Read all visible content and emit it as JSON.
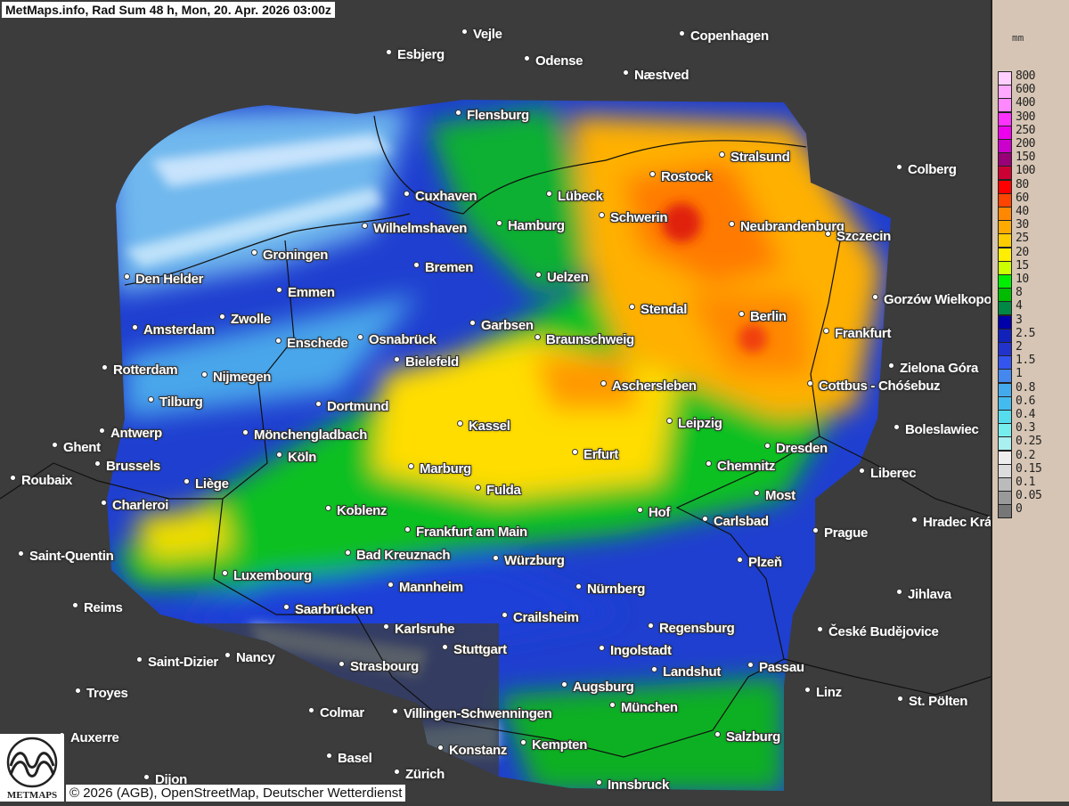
{
  "title": "MetMaps.info, Rad Sum 48 h, Mon, 20. Apr. 2026 03:00z",
  "copyright": "© 2026 (AGB), OpenStreetMap, Deutscher Wetterdienst",
  "logo_text": "METMAPS",
  "legend": {
    "unit": "mm",
    "levels": [
      {
        "label": "800",
        "color": "#ffd0ff"
      },
      {
        "label": "600",
        "color": "#ffaaff"
      },
      {
        "label": "400",
        "color": "#ff88ff"
      },
      {
        "label": "300",
        "color": "#ff33ff"
      },
      {
        "label": "250",
        "color": "#ee00ee"
      },
      {
        "label": "200",
        "color": "#cc00cc"
      },
      {
        "label": "150",
        "color": "#990077"
      },
      {
        "label": "100",
        "color": "#cc0033"
      },
      {
        "label": "80",
        "color": "#ff0000"
      },
      {
        "label": "60",
        "color": "#ff4400"
      },
      {
        "label": "40",
        "color": "#ff8800"
      },
      {
        "label": "30",
        "color": "#ffaa00"
      },
      {
        "label": "25",
        "color": "#ffcc00"
      },
      {
        "label": "20",
        "color": "#ffee00"
      },
      {
        "label": "15",
        "color": "#ccff00"
      },
      {
        "label": "10",
        "color": "#00ee00"
      },
      {
        "label": "8",
        "color": "#00bb00"
      },
      {
        "label": "4",
        "color": "#008844"
      },
      {
        "label": "3",
        "color": "#0000aa"
      },
      {
        "label": "2.5",
        "color": "#1122bb"
      },
      {
        "label": "2",
        "color": "#2233cc"
      },
      {
        "label": "1.5",
        "color": "#3355ee"
      },
      {
        "label": "1",
        "color": "#4488ee"
      },
      {
        "label": "0.8",
        "color": "#44aaee"
      },
      {
        "label": "0.6",
        "color": "#44bbee"
      },
      {
        "label": "0.4",
        "color": "#55ddee"
      },
      {
        "label": "0.3",
        "color": "#77eeee"
      },
      {
        "label": "0.25",
        "color": "#aaf0f0"
      },
      {
        "label": "0.2",
        "color": "#eeeeee"
      },
      {
        "label": "0.15",
        "color": "#dddddd"
      },
      {
        "label": "0.1",
        "color": "#bbbbbb"
      },
      {
        "label": "0.05",
        "color": "#999999"
      },
      {
        "label": "0",
        "color": "#777777"
      }
    ]
  },
  "cities": [
    "Vejle",
    "Copenhagen",
    "Esbjerg",
    "Odense",
    "Næstved",
    "Flensburg",
    "Stralsund",
    "Rostock",
    "Colberg",
    "Cuxhaven",
    "Lübeck",
    "Schwerin",
    "Neubrandenburg",
    "Szczecin",
    "Wilhelmshaven",
    "Hamburg",
    "Groningen",
    "Bremen",
    "Den Helder",
    "Uelzen",
    "Emmen",
    "Gorzów Wielkopolski",
    "Stendal",
    "Berlin",
    "Zwolle",
    "Garbsen",
    "Amsterdam",
    "Frankfurt",
    "Enschede",
    "Osnabrück",
    "Braunschweig",
    "Bielefeld",
    "Zielona Góra",
    "Rotterdam",
    "Nijmegen",
    "Aschersleben",
    "Cottbus - Chóśebuz",
    "Tilburg",
    "Dortmund",
    "Leipzig",
    "Kassel",
    "Antwerp",
    "Mönchengladbach",
    "Boleslawiec",
    "Ghent",
    "Dresden",
    "Erfurt",
    "Köln",
    "Brussels",
    "Marburg",
    "Chemnitz",
    "Liberec",
    "Roubaix",
    "Liège",
    "Fulda",
    "Most",
    "Charleroi",
    "Koblenz",
    "Hof",
    "Carlsbad",
    "Hradec Králové",
    "Prague",
    "Frankfurt am Main",
    "Saint-Quentin",
    "Bad Kreuznach",
    "Würzburg",
    "Plzeň",
    "Luxembourg",
    "Mannheim",
    "Nürnberg",
    "Jihlava",
    "Reims",
    "Saarbrücken",
    "Crailsheim",
    "Karlsruhe",
    "Regensburg",
    "České Budějovice",
    "Stuttgart",
    "Ingolstadt",
    "Saint-Dizier",
    "Nancy",
    "Strasbourg",
    "Landshut",
    "Passau",
    "Augsburg",
    "Linz",
    "Troyes",
    "St. Pölten",
    "Colmar",
    "Villingen-Schwenningen",
    "München",
    "Auxerre",
    "Salzburg",
    "Konstanz",
    "Kempten",
    "Basel",
    "Zürich",
    "Dijon",
    "Innsbruck"
  ]
}
